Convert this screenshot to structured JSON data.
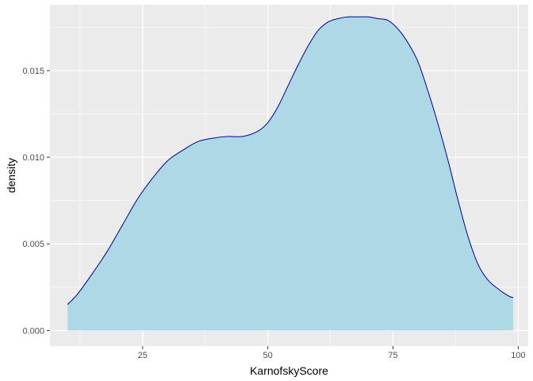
{
  "chart_data": {
    "type": "area",
    "title": "",
    "xlabel": "KarnofskyScore",
    "ylabel": "density",
    "xlim": [
      6.5,
      102
    ],
    "ylim": [
      -0.0009,
      0.0188
    ],
    "x_ticks": [
      25,
      50,
      75,
      100
    ],
    "x_tick_labels": [
      "25",
      "50",
      "75",
      "100"
    ],
    "y_ticks": [
      0.0,
      0.005,
      0.01,
      0.015
    ],
    "y_tick_labels": [
      "0.000",
      "0.005",
      "0.010",
      "0.015"
    ],
    "grid": true,
    "legend": "none",
    "colors": {
      "panel_background": "#ebebeb",
      "gridline": "#ffffff",
      "fill": "#add8e6",
      "line": "#00008b"
    },
    "series": [
      {
        "x": [
          10,
          12,
          15,
          18,
          21,
          24,
          27,
          30,
          33,
          36,
          39,
          42,
          45,
          48,
          50,
          52,
          54,
          56,
          58,
          60,
          62,
          64,
          66,
          68,
          70,
          72,
          74,
          76,
          78,
          80,
          82,
          84,
          86,
          88,
          90,
          92,
          94,
          96,
          98,
          99
        ],
        "values": [
          0.0015,
          0.0021,
          0.0033,
          0.0046,
          0.0061,
          0.0076,
          0.0088,
          0.0098,
          0.0104,
          0.0109,
          0.0111,
          0.0112,
          0.0112,
          0.0115,
          0.012,
          0.0129,
          0.0141,
          0.0153,
          0.0164,
          0.0173,
          0.0178,
          0.018,
          0.0181,
          0.0181,
          0.0181,
          0.018,
          0.0179,
          0.0174,
          0.0166,
          0.0155,
          0.0138,
          0.0119,
          0.0098,
          0.0075,
          0.0054,
          0.0038,
          0.0029,
          0.0024,
          0.002,
          0.0019
        ]
      }
    ]
  }
}
